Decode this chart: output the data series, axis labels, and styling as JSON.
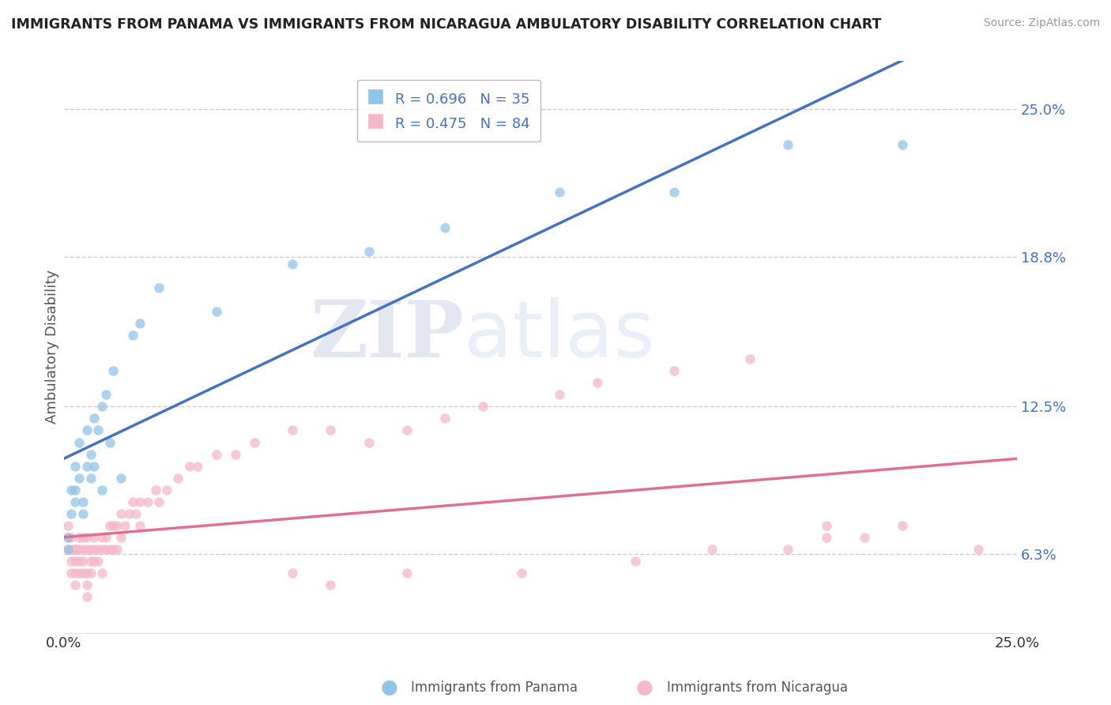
{
  "title": "IMMIGRANTS FROM PANAMA VS IMMIGRANTS FROM NICARAGUA AMBULATORY DISABILITY CORRELATION CHART",
  "source": "Source: ZipAtlas.com",
  "ylabel": "Ambulatory Disability",
  "xmin": 0.0,
  "xmax": 0.25,
  "ymin": 0.03,
  "ymax": 0.27,
  "yticks": [
    0.063,
    0.125,
    0.188,
    0.25
  ],
  "ytick_labels": [
    "6.3%",
    "12.5%",
    "18.8%",
    "25.0%"
  ],
  "panama_color": "#90c4e8",
  "nicaragua_color": "#f5b8c8",
  "panama_line_color": "#4472c4",
  "nicaragua_line_color": "#e07090",
  "r_panama": 0.696,
  "n_panama": 35,
  "r_nicaragua": 0.475,
  "n_nicaragua": 84,
  "legend_label_panama": "Immigrants from Panama",
  "legend_label_nicaragua": "Immigrants from Nicaragua",
  "watermark_zip": "ZIP",
  "watermark_atlas": "atlas",
  "panama_scatter_x": [
    0.001,
    0.001,
    0.002,
    0.002,
    0.003,
    0.003,
    0.003,
    0.004,
    0.004,
    0.005,
    0.005,
    0.006,
    0.006,
    0.007,
    0.007,
    0.008,
    0.008,
    0.009,
    0.01,
    0.01,
    0.011,
    0.012,
    0.013,
    0.015,
    0.018,
    0.02,
    0.025,
    0.04,
    0.06,
    0.08,
    0.1,
    0.13,
    0.16,
    0.19,
    0.22
  ],
  "panama_scatter_y": [
    0.065,
    0.07,
    0.08,
    0.09,
    0.085,
    0.09,
    0.1,
    0.095,
    0.11,
    0.08,
    0.085,
    0.1,
    0.115,
    0.095,
    0.105,
    0.1,
    0.12,
    0.115,
    0.09,
    0.125,
    0.13,
    0.11,
    0.14,
    0.095,
    0.155,
    0.16,
    0.175,
    0.165,
    0.185,
    0.19,
    0.2,
    0.215,
    0.215,
    0.235,
    0.235
  ],
  "nicaragua_scatter_x": [
    0.001,
    0.001,
    0.001,
    0.002,
    0.002,
    0.002,
    0.002,
    0.003,
    0.003,
    0.003,
    0.003,
    0.003,
    0.004,
    0.004,
    0.004,
    0.004,
    0.005,
    0.005,
    0.005,
    0.005,
    0.006,
    0.006,
    0.006,
    0.006,
    0.006,
    0.007,
    0.007,
    0.007,
    0.008,
    0.008,
    0.008,
    0.009,
    0.009,
    0.01,
    0.01,
    0.01,
    0.011,
    0.011,
    0.012,
    0.012,
    0.013,
    0.013,
    0.014,
    0.014,
    0.015,
    0.015,
    0.016,
    0.017,
    0.018,
    0.019,
    0.02,
    0.02,
    0.022,
    0.024,
    0.025,
    0.027,
    0.03,
    0.033,
    0.035,
    0.04,
    0.045,
    0.05,
    0.06,
    0.07,
    0.08,
    0.09,
    0.1,
    0.11,
    0.13,
    0.14,
    0.16,
    0.18,
    0.2,
    0.2,
    0.22,
    0.24,
    0.12,
    0.15,
    0.17,
    0.19,
    0.21,
    0.06,
    0.07,
    0.09
  ],
  "nicaragua_scatter_y": [
    0.07,
    0.075,
    0.065,
    0.07,
    0.065,
    0.06,
    0.055,
    0.065,
    0.065,
    0.06,
    0.055,
    0.05,
    0.065,
    0.07,
    0.06,
    0.055,
    0.07,
    0.065,
    0.06,
    0.055,
    0.07,
    0.065,
    0.055,
    0.05,
    0.045,
    0.065,
    0.06,
    0.055,
    0.07,
    0.065,
    0.06,
    0.065,
    0.06,
    0.07,
    0.065,
    0.055,
    0.07,
    0.065,
    0.075,
    0.065,
    0.075,
    0.065,
    0.075,
    0.065,
    0.08,
    0.07,
    0.075,
    0.08,
    0.085,
    0.08,
    0.085,
    0.075,
    0.085,
    0.09,
    0.085,
    0.09,
    0.095,
    0.1,
    0.1,
    0.105,
    0.105,
    0.11,
    0.115,
    0.115,
    0.11,
    0.115,
    0.12,
    0.125,
    0.13,
    0.135,
    0.14,
    0.145,
    0.075,
    0.07,
    0.075,
    0.065,
    0.055,
    0.06,
    0.065,
    0.065,
    0.07,
    0.055,
    0.05,
    0.055
  ]
}
